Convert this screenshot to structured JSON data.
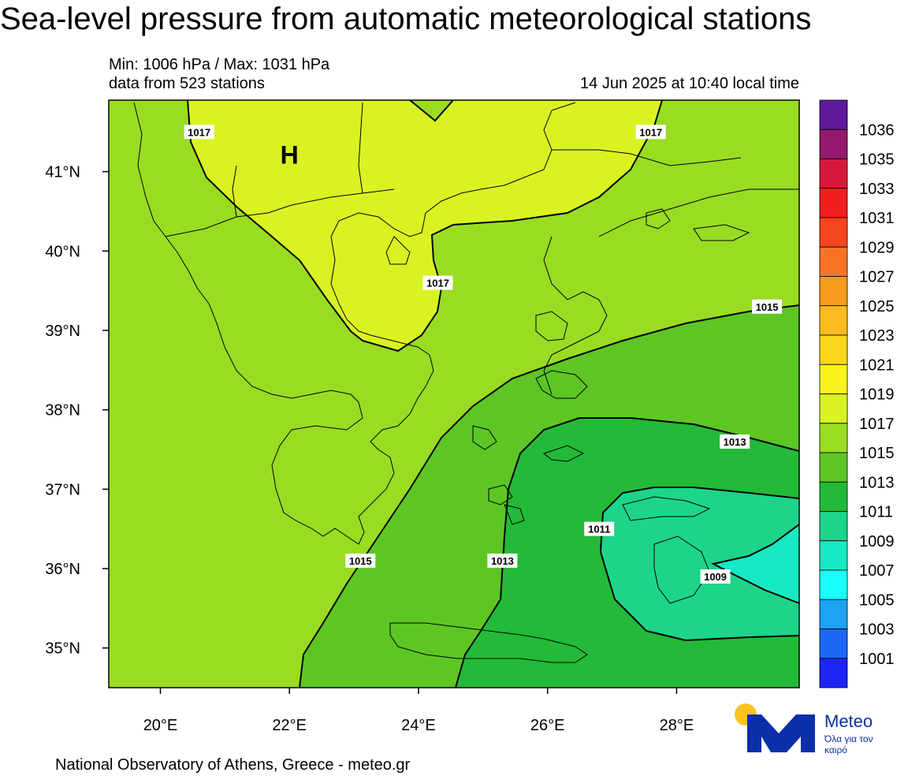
{
  "header": {
    "title": "Sea-level pressure from automatic meteorological stations",
    "minmax": "Min: 1006 hPa / Max: 1031 hPa",
    "stations": "data from 523 stations",
    "timestamp": "14 Jun 2025 at 10:40 local time"
  },
  "map": {
    "lon_range": [
      19.2,
      29.9
    ],
    "lat_range": [
      34.5,
      41.9
    ],
    "lat_ticks": [
      {
        "value": 41,
        "label": "41°N"
      },
      {
        "value": 40,
        "label": "40°N"
      },
      {
        "value": 39,
        "label": "39°N"
      },
      {
        "value": 38,
        "label": "38°N"
      },
      {
        "value": 37,
        "label": "37°N"
      },
      {
        "value": 36,
        "label": "36°N"
      },
      {
        "value": 35,
        "label": "35°N"
      }
    ],
    "lon_ticks": [
      {
        "value": 20,
        "label": "20°E"
      },
      {
        "value": 22,
        "label": "22°E"
      },
      {
        "value": 24,
        "label": "24°E"
      },
      {
        "value": 26,
        "label": "26°E"
      },
      {
        "value": 28,
        "label": "28°E"
      }
    ],
    "high_marker": {
      "label": "H",
      "lon": 22.0,
      "lat": 41.1
    },
    "contour_labels": [
      {
        "text": "1017",
        "lon": 20.6,
        "lat": 41.5
      },
      {
        "text": "1017",
        "lon": 27.6,
        "lat": 41.5
      },
      {
        "text": "1017",
        "lon": 24.3,
        "lat": 39.6
      },
      {
        "text": "1015",
        "lon": 29.4,
        "lat": 39.3
      },
      {
        "text": "1015",
        "lon": 23.1,
        "lat": 36.1
      },
      {
        "text": "1013",
        "lon": 28.9,
        "lat": 37.6
      },
      {
        "text": "1013",
        "lon": 25.3,
        "lat": 36.1
      },
      {
        "text": "1011",
        "lon": 26.8,
        "lat": 36.5
      },
      {
        "text": "1009",
        "lon": 28.6,
        "lat": 35.9
      }
    ]
  },
  "legend": {
    "colors": [
      "#5f1a9c",
      "#931a6c",
      "#d6193a",
      "#f21e1e",
      "#f6461e",
      "#f87424",
      "#f99a1e",
      "#fbbb1e",
      "#fbd71e",
      "#fcf31e",
      "#d9f322",
      "#99dc22",
      "#5dc624",
      "#22ba38",
      "#1cd48a",
      "#16e9c4",
      "#19ffff",
      "#1ca3f4",
      "#1c68f4",
      "#1c24f8"
    ],
    "labels": [
      "1036",
      "1035",
      "1033",
      "1031",
      "1029",
      "1027",
      "1025",
      "1023",
      "1021",
      "1019",
      "1017",
      "1015",
      "1013",
      "1011",
      "1009",
      "1007",
      "1005",
      "1003",
      "1001"
    ]
  },
  "fill_colors": {
    "band_1017": "#d9f322",
    "band_1015": "#99dc22",
    "band_1013": "#5dc624",
    "band_1011": "#22ba38",
    "band_1009": "#1cd48a",
    "band_1007": "#16e9c4"
  },
  "footer": {
    "credit": "National Observatory of Athens, Greece - meteo.gr"
  },
  "logo": {
    "name": "Meteo",
    "tagline": "Όλα για τον καιρό",
    "sun_color": "#fbc21e",
    "brand_color": "#0b2fa8"
  }
}
